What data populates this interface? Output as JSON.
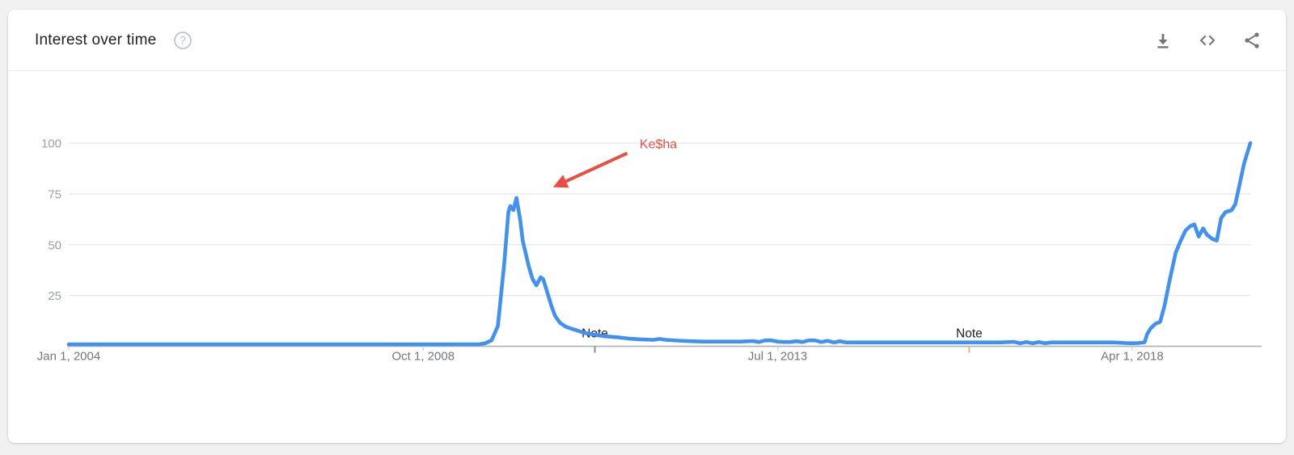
{
  "window": {
    "background": "#f1f1f2",
    "card_background": "#ffffff"
  },
  "header": {
    "title": "Interest over time",
    "help_icon": "help-circle-icon",
    "action_icons": [
      "download-icon",
      "embed-code-icon",
      "share-icon"
    ],
    "icon_color": "#757575"
  },
  "chart_data": {
    "type": "line",
    "title": "Interest over time",
    "line_color": "#4191f3",
    "grid_color": "#e6e7e8",
    "axis_color": "#b3b6b8",
    "x_label_color": "#73767a",
    "y_label_color": "#9aa0a6",
    "note_label_color": "#202124",
    "annotation_color": "#ea4e43",
    "grid": true,
    "legend": false,
    "xlabel": "",
    "ylabel": "",
    "y_axis": {
      "ticks": [
        25,
        50,
        75,
        100
      ],
      "tick_labels": [
        "25",
        "50",
        "75",
        "100"
      ],
      "range": [
        0,
        100
      ]
    },
    "x_axis": {
      "tick_months": [
        0,
        57,
        114,
        171
      ],
      "tick_labels": [
        "Jan 1, 2004",
        "Oct 1, 2008",
        "Jul 1, 2013",
        "Apr 1, 2018"
      ]
    },
    "x_range_months": [
      0,
      190
    ],
    "notes": [
      {
        "label": "Note",
        "month": 84.6,
        "tick_color": "#8a8f94"
      },
      {
        "label": "Note",
        "month": 144.8,
        "tick_color": "#e6b38a"
      }
    ],
    "annotation": {
      "label": "Ke$ha",
      "label_month": 91.8,
      "label_value": 97.5,
      "arrow_from": [
        89.8,
        95.0
      ],
      "arrow_to": [
        78.4,
        79.0
      ]
    },
    "points": [
      [
        0,
        1
      ],
      [
        12,
        1
      ],
      [
        24,
        1
      ],
      [
        36,
        1
      ],
      [
        48,
        1
      ],
      [
        60,
        1
      ],
      [
        66,
        1
      ],
      [
        67,
        1.5
      ],
      [
        68,
        3
      ],
      [
        69,
        10
      ],
      [
        70,
        40
      ],
      [
        70.7,
        66
      ],
      [
        71,
        69
      ],
      [
        71.5,
        67
      ],
      [
        72,
        73
      ],
      [
        72.6,
        62
      ],
      [
        73,
        52
      ],
      [
        74,
        39
      ],
      [
        74.6,
        33
      ],
      [
        75.2,
        30
      ],
      [
        75.9,
        34
      ],
      [
        76.3,
        33
      ],
      [
        77,
        26
      ],
      [
        77.6,
        20
      ],
      [
        78.2,
        15
      ],
      [
        79,
        11.5
      ],
      [
        80,
        9.5
      ],
      [
        81,
        8.5
      ],
      [
        82,
        7.5
      ],
      [
        83,
        6.5
      ],
      [
        84,
        6
      ],
      [
        85,
        5.5
      ],
      [
        86,
        5
      ],
      [
        88,
        4.5
      ],
      [
        90,
        3.8
      ],
      [
        92,
        3.4
      ],
      [
        94,
        3.2
      ],
      [
        95,
        3.6
      ],
      [
        96,
        3.2
      ],
      [
        98,
        2.8
      ],
      [
        100,
        2.5
      ],
      [
        102,
        2.3
      ],
      [
        104,
        2.3
      ],
      [
        106,
        2.3
      ],
      [
        108,
        2.3
      ],
      [
        110,
        2.6
      ],
      [
        111,
        2.1
      ],
      [
        112,
        2.9
      ],
      [
        113,
        2.9
      ],
      [
        114,
        2.3
      ],
      [
        115,
        2.1
      ],
      [
        116,
        2.1
      ],
      [
        117,
        2.5
      ],
      [
        118,
        2.1
      ],
      [
        119,
        2.9
      ],
      [
        120,
        2.9
      ],
      [
        121,
        2.1
      ],
      [
        122,
        2.7
      ],
      [
        123,
        1.9
      ],
      [
        124,
        2.5
      ],
      [
        125,
        1.9
      ],
      [
        126,
        1.9
      ],
      [
        128,
        1.9
      ],
      [
        130,
        1.9
      ],
      [
        132,
        1.9
      ],
      [
        134,
        1.9
      ],
      [
        136,
        1.9
      ],
      [
        138,
        1.9
      ],
      [
        140,
        1.9
      ],
      [
        142,
        1.9
      ],
      [
        144,
        1.9
      ],
      [
        146,
        1.9
      ],
      [
        148,
        1.9
      ],
      [
        150,
        1.9
      ],
      [
        152,
        2.2
      ],
      [
        153,
        1.5
      ],
      [
        154,
        2.1
      ],
      [
        155,
        1.5
      ],
      [
        156,
        2.1
      ],
      [
        157,
        1.5
      ],
      [
        158,
        1.9
      ],
      [
        160,
        1.9
      ],
      [
        162,
        1.9
      ],
      [
        164,
        1.9
      ],
      [
        166,
        1.9
      ],
      [
        168,
        1.9
      ],
      [
        170,
        1.6
      ],
      [
        171,
        1.5
      ],
      [
        172,
        1.6
      ],
      [
        173,
        2
      ],
      [
        173.4,
        6
      ],
      [
        174,
        9
      ],
      [
        174.7,
        11
      ],
      [
        175.5,
        12
      ],
      [
        176.2,
        20
      ],
      [
        177,
        32
      ],
      [
        178,
        46
      ],
      [
        178.8,
        52
      ],
      [
        179.6,
        57
      ],
      [
        180.3,
        59
      ],
      [
        181,
        60
      ],
      [
        181.7,
        54
      ],
      [
        182.4,
        58
      ],
      [
        183,
        55
      ],
      [
        183.8,
        53
      ],
      [
        184.6,
        52
      ],
      [
        185.3,
        63
      ],
      [
        186,
        66
      ],
      [
        187,
        67
      ],
      [
        187.6,
        70
      ],
      [
        188.3,
        80
      ],
      [
        189,
        90
      ],
      [
        189.7,
        97
      ],
      [
        190,
        100
      ]
    ]
  }
}
